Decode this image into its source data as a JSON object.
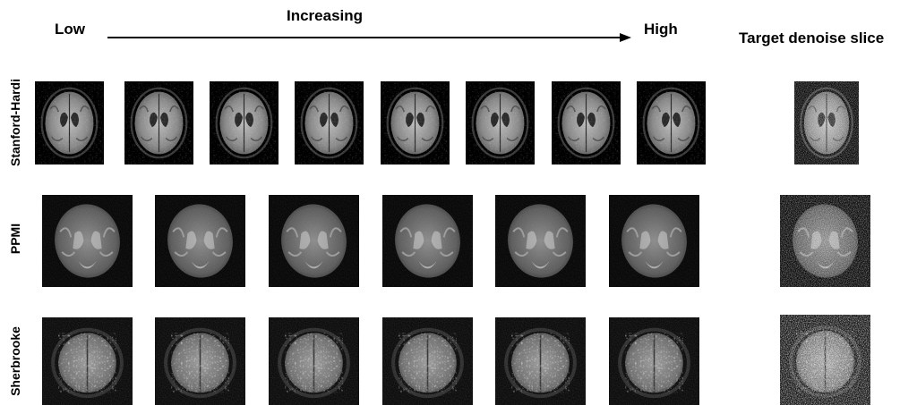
{
  "header": {
    "low": "Low",
    "increasing": "Increasing",
    "high": "High",
    "target": "Target denoise slice"
  },
  "rows": [
    {
      "label": "Stanford-Hardi"
    },
    {
      "label": "PPMI"
    },
    {
      "label": "Sherbrooke"
    }
  ]
}
